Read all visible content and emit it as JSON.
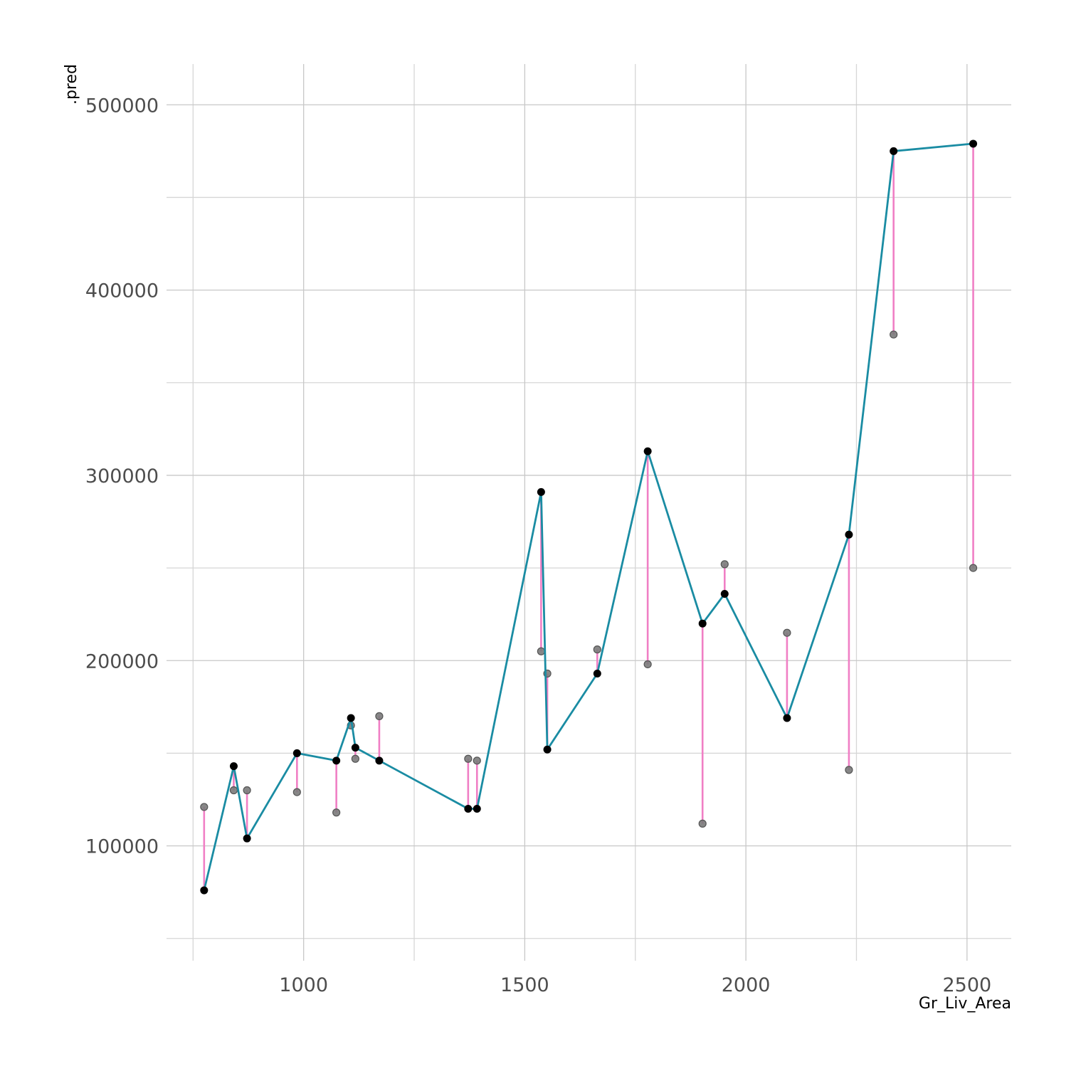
{
  "chart_data": {
    "type": "scatter",
    "title": "",
    "xlabel": "Gr_Liv_Area",
    "ylabel": ".pred",
    "xlim": [
      690,
      2600
    ],
    "ylim": [
      38000,
      522000
    ],
    "x_ticks": [
      1000,
      1500,
      2000,
      2500
    ],
    "x_tick_labels": [
      "1000",
      "1500",
      "2000",
      "2500"
    ],
    "y_ticks": [
      100000,
      200000,
      300000,
      400000,
      500000
    ],
    "y_tick_labels": [
      "100000",
      "200000",
      "300000",
      "400000",
      "500000"
    ],
    "grid": true,
    "legend": "none",
    "colors": {
      "prediction_line": "#1a8ca3",
      "residual_segment": "#f07fc5",
      "predicted_point": "#000000",
      "observed_point": "#7a7a7a"
    },
    "series": [
      {
        "x": [
          775,
          842,
          872,
          985,
          1074,
          1107,
          1117,
          1171,
          1372,
          1392,
          1537,
          1551,
          1664,
          1778,
          1902,
          1952,
          2093,
          2233,
          2334,
          2514
        ],
        "predicted": [
          76000,
          143000,
          104000,
          150000,
          146000,
          169000,
          153000,
          146000,
          120000,
          120000,
          291000,
          152000,
          193000,
          313000,
          220000,
          236000,
          169000,
          268000,
          475000,
          479000
        ],
        "observed": [
          121000,
          130000,
          130000,
          129000,
          118000,
          165000,
          147000,
          170000,
          147000,
          146000,
          205000,
          193000,
          206000,
          198000,
          112000,
          252000,
          215000,
          141000,
          376000,
          250000
        ]
      }
    ]
  }
}
